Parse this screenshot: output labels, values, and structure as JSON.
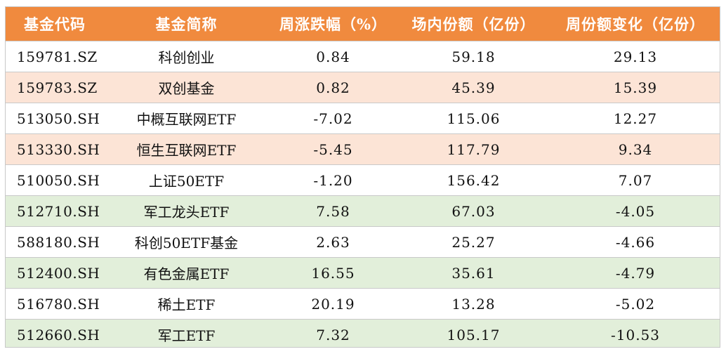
{
  "colors": {
    "header_bg": "#f08a3e",
    "row_white": "#ffffff",
    "row_peach": "#fce4d6",
    "row_green": "#e2efda"
  },
  "headers": [
    "基金代码",
    "基金简称",
    "周涨跌幅（%）",
    "场内份额（亿份）",
    "周份额变化（亿份）"
  ],
  "rows": [
    {
      "code": "159781.SZ",
      "name": "科创创业",
      "weekly_change_pct": "0.84",
      "shares": "59.18",
      "share_change": "29.13",
      "tone": "white"
    },
    {
      "code": "159783.SZ",
      "name": "双创基金",
      "weekly_change_pct": "0.82",
      "shares": "45.39",
      "share_change": "15.39",
      "tone": "peach"
    },
    {
      "code": "513050.SH",
      "name": "中概互联网ETF",
      "weekly_change_pct": "-7.02",
      "shares": "115.06",
      "share_change": "12.27",
      "tone": "white"
    },
    {
      "code": "513330.SH",
      "name": "恒生互联网ETF",
      "weekly_change_pct": "-5.45",
      "shares": "117.79",
      "share_change": "9.34",
      "tone": "peach"
    },
    {
      "code": "510050.SH",
      "name": "上证50ETF",
      "weekly_change_pct": "-1.20",
      "shares": "156.42",
      "share_change": "7.07",
      "tone": "white"
    },
    {
      "code": "512710.SH",
      "name": "军工龙头ETF",
      "weekly_change_pct": "7.58",
      "shares": "67.03",
      "share_change": "-4.05",
      "tone": "green"
    },
    {
      "code": "588180.SH",
      "name": "科创50ETF基金",
      "weekly_change_pct": "2.63",
      "shares": "25.27",
      "share_change": "-4.66",
      "tone": "white"
    },
    {
      "code": "512400.SH",
      "name": "有色金属ETF",
      "weekly_change_pct": "16.55",
      "shares": "35.61",
      "share_change": "-4.79",
      "tone": "green"
    },
    {
      "code": "516780.SH",
      "name": "稀土ETF",
      "weekly_change_pct": "20.19",
      "shares": "13.28",
      "share_change": "-5.02",
      "tone": "white"
    },
    {
      "code": "512660.SH",
      "name": "军工ETF",
      "weekly_change_pct": "7.32",
      "shares": "105.17",
      "share_change": "-10.53",
      "tone": "green"
    }
  ]
}
